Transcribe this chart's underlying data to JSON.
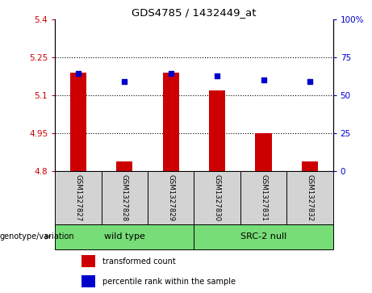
{
  "title": "GDS4785 / 1432449_at",
  "samples": [
    "GSM1327827",
    "GSM1327828",
    "GSM1327829",
    "GSM1327830",
    "GSM1327831",
    "GSM1327832"
  ],
  "red_values": [
    5.19,
    4.84,
    5.19,
    5.12,
    4.95,
    4.84
  ],
  "blue_values": [
    5.185,
    5.155,
    5.185,
    5.175,
    5.16,
    5.155
  ],
  "ylim_left": [
    4.8,
    5.4
  ],
  "ylim_right": [
    0,
    100
  ],
  "yticks_left": [
    4.8,
    4.95,
    5.1,
    5.25,
    5.4
  ],
  "yticks_right": [
    0,
    25,
    50,
    75,
    100
  ],
  "ytick_labels_left": [
    "4.8",
    "4.95",
    "5.1",
    "5.25",
    "5.4"
  ],
  "ytick_labels_right": [
    "0",
    "25",
    "50",
    "75",
    "100%"
  ],
  "left_axis_color": "#CC0000",
  "right_axis_color": "#0000CC",
  "bar_color": "#CC0000",
  "dot_color": "#0000CC",
  "group_label_text": "genotype/variation",
  "group_labels": [
    "wild type",
    "SRC-2 null"
  ],
  "group_color": "#77DD77",
  "sample_box_color": "#D3D3D3",
  "legend_red": "transformed count",
  "legend_blue": "percentile rank within the sample",
  "bar_bottom": 4.8,
  "bar_width": 0.35
}
